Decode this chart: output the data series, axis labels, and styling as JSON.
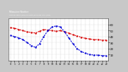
{
  "background_color": "#c8c8c8",
  "plot_bg_color": "#ffffff",
  "x_values": [
    0,
    1,
    2,
    3,
    4,
    5,
    6,
    7,
    8,
    9,
    10,
    11,
    12,
    13,
    14,
    15,
    16,
    17,
    18,
    19,
    20,
    21,
    22,
    23
  ],
  "red_values": [
    55,
    54,
    52,
    50,
    48,
    47,
    46,
    49,
    52,
    51,
    50,
    49,
    50,
    48,
    46,
    43,
    41,
    39,
    37,
    36,
    35,
    35,
    34,
    34
  ],
  "blue_values": [
    42,
    40,
    38,
    35,
    30,
    25,
    22,
    28,
    40,
    50,
    56,
    58,
    56,
    48,
    38,
    28,
    20,
    15,
    12,
    10,
    9,
    9,
    8,
    8
  ],
  "red_color": "#dd0000",
  "blue_color": "#0000dd",
  "ylim_min": 0,
  "ylim_max": 70,
  "ytick_positions": [
    10,
    20,
    30,
    40,
    50,
    60
  ],
  "ytick_labels": [
    "10",
    "20",
    "30",
    "40",
    "50",
    "60"
  ],
  "grid_color": "#888888",
  "line_width": 0.8,
  "marker_size": 1.5,
  "title_area_color": "#1a1a1a",
  "title_text_color": "#ffffff"
}
